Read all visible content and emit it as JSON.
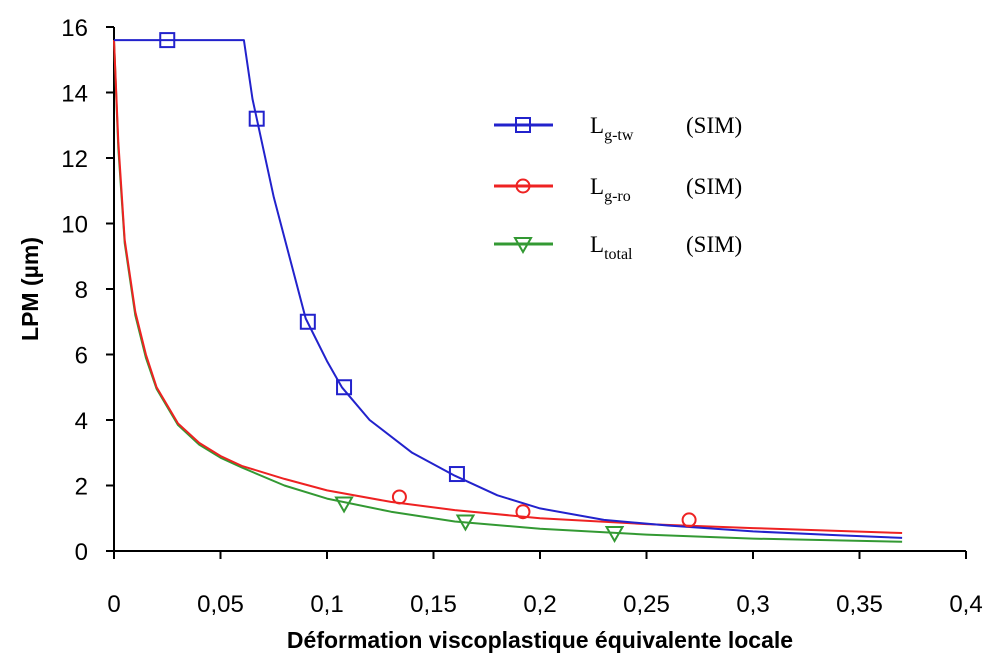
{
  "chart_data": {
    "type": "line",
    "title": "",
    "xlabel": "Déformation viscoplastique équivalente locale",
    "ylabel": "LPM (µm)",
    "xlim": [
      0,
      0.4
    ],
    "ylim": [
      0,
      16
    ],
    "x_ticks": [
      {
        "value": 0,
        "label": "0"
      },
      {
        "value": 0.05,
        "label": "0,05"
      },
      {
        "value": 0.1,
        "label": "0,1"
      },
      {
        "value": 0.15,
        "label": "0,15"
      },
      {
        "value": 0.2,
        "label": "0,2"
      },
      {
        "value": 0.25,
        "label": "0,25"
      },
      {
        "value": 0.3,
        "label": "0,3"
      },
      {
        "value": 0.35,
        "label": "0,35"
      },
      {
        "value": 0.4,
        "label": "0,4"
      }
    ],
    "y_ticks": [
      {
        "value": 0,
        "label": "0"
      },
      {
        "value": 2,
        "label": "2"
      },
      {
        "value": 4,
        "label": "4"
      },
      {
        "value": 6,
        "label": "6"
      },
      {
        "value": 8,
        "label": "8"
      },
      {
        "value": 10,
        "label": "10"
      },
      {
        "value": 12,
        "label": "12"
      },
      {
        "value": 14,
        "label": "14"
      },
      {
        "value": 16,
        "label": "16"
      }
    ],
    "grid": false,
    "legend_position": "top-right",
    "series": [
      {
        "name": "L",
        "name_sub": "g-tw",
        "name_suffix": "(SIM)",
        "color": "#2222cc",
        "marker": "square",
        "line": [
          [
            0,
            15.6
          ],
          [
            0.061,
            15.6
          ],
          [
            0.065,
            13.8
          ],
          [
            0.075,
            10.8
          ],
          [
            0.09,
            7.1
          ],
          [
            0.1,
            5.8
          ],
          [
            0.107,
            5.0
          ],
          [
            0.12,
            4.0
          ],
          [
            0.14,
            3.0
          ],
          [
            0.16,
            2.3
          ],
          [
            0.18,
            1.7
          ],
          [
            0.2,
            1.3
          ],
          [
            0.23,
            0.95
          ],
          [
            0.26,
            0.78
          ],
          [
            0.3,
            0.6
          ],
          [
            0.34,
            0.48
          ],
          [
            0.37,
            0.4
          ]
        ],
        "markers": [
          [
            0.025,
            15.6
          ],
          [
            0.067,
            13.2
          ],
          [
            0.091,
            7.0
          ],
          [
            0.108,
            5.0
          ],
          [
            0.161,
            2.35
          ]
        ]
      },
      {
        "name": "L",
        "name_sub": "g-ro",
        "name_suffix": "(SIM)",
        "color": "#ee2222",
        "marker": "circle",
        "line": [
          [
            0,
            15.6
          ],
          [
            0.002,
            12.5
          ],
          [
            0.005,
            9.5
          ],
          [
            0.01,
            7.3
          ],
          [
            0.015,
            6.0
          ],
          [
            0.02,
            5.0
          ],
          [
            0.03,
            3.9
          ],
          [
            0.04,
            3.3
          ],
          [
            0.05,
            2.9
          ],
          [
            0.06,
            2.6
          ],
          [
            0.08,
            2.2
          ],
          [
            0.1,
            1.85
          ],
          [
            0.13,
            1.5
          ],
          [
            0.16,
            1.25
          ],
          [
            0.2,
            1.0
          ],
          [
            0.25,
            0.82
          ],
          [
            0.3,
            0.7
          ],
          [
            0.37,
            0.55
          ]
        ],
        "markers": [
          [
            0.134,
            1.65
          ],
          [
            0.192,
            1.2
          ],
          [
            0.27,
            0.95
          ]
        ]
      },
      {
        "name": "L",
        "name_sub": "total",
        "name_suffix": "(SIM)",
        "color": "#339933",
        "marker": "triangle-down",
        "line": [
          [
            0,
            15.6
          ],
          [
            0.002,
            12.3
          ],
          [
            0.005,
            9.4
          ],
          [
            0.01,
            7.2
          ],
          [
            0.015,
            5.9
          ],
          [
            0.02,
            4.95
          ],
          [
            0.03,
            3.85
          ],
          [
            0.04,
            3.25
          ],
          [
            0.05,
            2.85
          ],
          [
            0.06,
            2.55
          ],
          [
            0.08,
            2.0
          ],
          [
            0.1,
            1.6
          ],
          [
            0.13,
            1.2
          ],
          [
            0.16,
            0.9
          ],
          [
            0.2,
            0.68
          ],
          [
            0.25,
            0.5
          ],
          [
            0.3,
            0.38
          ],
          [
            0.37,
            0.28
          ]
        ],
        "markers": [
          [
            0.108,
            1.45
          ],
          [
            0.165,
            0.9
          ],
          [
            0.235,
            0.55
          ]
        ]
      }
    ]
  }
}
